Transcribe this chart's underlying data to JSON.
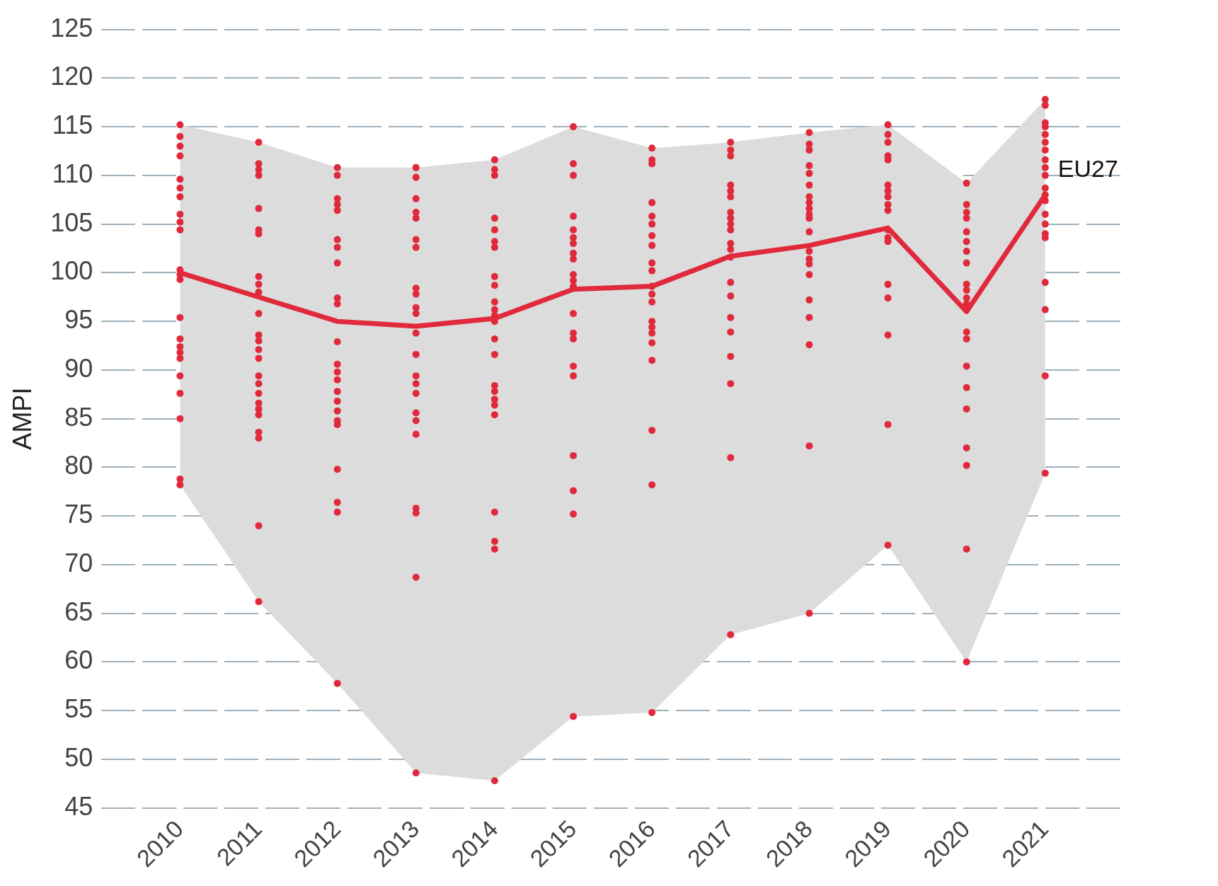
{
  "chart_data": {
    "type": "line",
    "ylabel": "AMPI",
    "x": [
      2010,
      2011,
      2012,
      2013,
      2014,
      2015,
      2016,
      2017,
      2018,
      2019,
      2020,
      2021
    ],
    "xlim": [
      2009,
      2022
    ],
    "xticks": [
      2010,
      2011,
      2012,
      2013,
      2014,
      2015,
      2016,
      2017,
      2018,
      2019,
      2020,
      2021
    ],
    "ylim": [
      45,
      125
    ],
    "yticks": [
      45,
      50,
      55,
      60,
      65,
      70,
      75,
      80,
      85,
      90,
      95,
      100,
      105,
      110,
      115,
      120,
      125
    ],
    "grid": "y",
    "legend": false,
    "series": [
      {
        "name": "EU27",
        "color": "#e02a3c",
        "marker": "none",
        "values": [
          100,
          97.5,
          95,
          94.5,
          95.3,
          98.3,
          98.6,
          101.7,
          102.8,
          104.6,
          96,
          108
        ],
        "lower": [
          78.2,
          66.2,
          57.8,
          48.6,
          47.8,
          54.4,
          54.8,
          62.8,
          65,
          72,
          60,
          79.4
        ],
        "upper": [
          115.2,
          113.4,
          110.8,
          110.8,
          111.6,
          115,
          112.8,
          113.4,
          114.4,
          115.2,
          109.2,
          117.8
        ]
      },
      {
        "type": "scatter",
        "color": "#e02a3c",
        "marker": "circle",
        "x": [
          2010,
          2010,
          2010,
          2010,
          2010,
          2010,
          2010,
          2010,
          2010,
          2010,
          2010,
          2010,
          2010,
          2010,
          2010,
          2010,
          2010,
          2010,
          2010,
          2010,
          2010,
          2010,
          2010,
          2011,
          2011,
          2011,
          2011,
          2011,
          2011,
          2011,
          2011,
          2011,
          2011,
          2011,
          2011,
          2011,
          2011,
          2011,
          2011,
          2011,
          2011,
          2011,
          2011,
          2011,
          2011,
          2011,
          2011,
          2011,
          2012,
          2012,
          2012,
          2012,
          2012,
          2012,
          2012,
          2012,
          2012,
          2012,
          2012,
          2012,
          2012,
          2012,
          2012,
          2012,
          2012,
          2012,
          2012,
          2012,
          2012,
          2012,
          2012,
          2013,
          2013,
          2013,
          2013,
          2013,
          2013,
          2013,
          2013,
          2013,
          2013,
          2013,
          2013,
          2013,
          2013,
          2013,
          2013,
          2013,
          2013,
          2013,
          2013,
          2013,
          2013,
          2013,
          2014,
          2014,
          2014,
          2014,
          2014,
          2014,
          2014,
          2014,
          2014,
          2014,
          2014,
          2014,
          2014,
          2014,
          2014,
          2014,
          2014,
          2014,
          2014,
          2014,
          2014,
          2014,
          2014,
          2014,
          2015,
          2015,
          2015,
          2015,
          2015,
          2015,
          2015,
          2015,
          2015,
          2015,
          2015,
          2015,
          2015,
          2015,
          2015,
          2015,
          2015,
          2015,
          2015,
          2015,
          2015,
          2016,
          2016,
          2016,
          2016,
          2016,
          2016,
          2016,
          2016,
          2016,
          2016,
          2016,
          2016,
          2016,
          2016,
          2016,
          2016,
          2016,
          2016,
          2016,
          2016,
          2016,
          2017,
          2017,
          2017,
          2017,
          2017,
          2017,
          2017,
          2017,
          2017,
          2017,
          2017,
          2017,
          2017,
          2017,
          2017,
          2017,
          2017,
          2017,
          2017,
          2017,
          2017,
          2018,
          2018,
          2018,
          2018,
          2018,
          2018,
          2018,
          2018,
          2018,
          2018,
          2018,
          2018,
          2018,
          2018,
          2018,
          2018,
          2018,
          2018,
          2018,
          2018,
          2018,
          2019,
          2019,
          2019,
          2019,
          2019,
          2019,
          2019,
          2019,
          2019,
          2019,
          2019,
          2019,
          2019,
          2019,
          2019,
          2019,
          2019,
          2019,
          2020,
          2020,
          2020,
          2020,
          2020,
          2020,
          2020,
          2020,
          2020,
          2020,
          2020,
          2020,
          2020,
          2020,
          2020,
          2020,
          2020,
          2020,
          2020,
          2020,
          2020,
          2020,
          2021,
          2021,
          2021,
          2021,
          2021,
          2021,
          2021,
          2021,
          2021,
          2021,
          2021,
          2021,
          2021,
          2021,
          2021,
          2021,
          2021,
          2021,
          2021,
          2021,
          2021
        ],
        "values": [
          115.2,
          114,
          113,
          112,
          109.6,
          108.7,
          107.8,
          106,
          105.2,
          104.4,
          100.3,
          99.8,
          99.3,
          95.4,
          93.2,
          92.4,
          91.8,
          91.2,
          89.4,
          87.6,
          85,
          78.8,
          78.2,
          113.4,
          111.2,
          110.6,
          110,
          106.6,
          104.4,
          104,
          99.6,
          98.8,
          98,
          95.8,
          93.6,
          93,
          92.1,
          91.2,
          89.4,
          88.6,
          87.6,
          86.6,
          86,
          85.4,
          83.6,
          83,
          74,
          66.2,
          110.8,
          110,
          107.6,
          107,
          106.4,
          103.4,
          102.6,
          101,
          97.4,
          96.8,
          92.9,
          90.6,
          89.8,
          89,
          87.8,
          86.8,
          85.8,
          84.8,
          84.4,
          79.8,
          76.4,
          75.4,
          57.8,
          110.8,
          109.8,
          107.6,
          106.2,
          105.6,
          103.4,
          102.6,
          98.4,
          97.8,
          96.4,
          95.8,
          93.8,
          91.6,
          89.4,
          88.6,
          87.6,
          85.6,
          84.8,
          83.4,
          75.8,
          75.3,
          68.7,
          48.6,
          111.6,
          110.6,
          110,
          105.6,
          104.4,
          103.2,
          102.6,
          99.6,
          98.7,
          97,
          96.2,
          95.6,
          95,
          93.2,
          91.6,
          88.4,
          87.8,
          87,
          86.4,
          85.4,
          75.4,
          72.4,
          71.6,
          47.8,
          115,
          111.2,
          110,
          105.8,
          104.4,
          103.6,
          103,
          102,
          101.4,
          99.8,
          99.2,
          98.6,
          95.8,
          93.8,
          93.2,
          90.4,
          89.4,
          81.2,
          77.6,
          75.2,
          54.4,
          112.8,
          111.6,
          111.2,
          107.2,
          105.8,
          105,
          103.8,
          102.8,
          101,
          100.2,
          98.6,
          97.8,
          97,
          95,
          94.4,
          93.8,
          92.8,
          91,
          83.8,
          78.2,
          54.8,
          113.4,
          112.6,
          112,
          109,
          108.4,
          107.8,
          106.2,
          105.6,
          105,
          104.4,
          103,
          102.4,
          101.6,
          99,
          97.6,
          95.4,
          93.9,
          91.4,
          88.6,
          81,
          62.8,
          114.4,
          113.2,
          112.6,
          111,
          110.2,
          109,
          107.8,
          107.2,
          106.6,
          106,
          105.6,
          104.2,
          102.2,
          101.4,
          100.9,
          99.8,
          97.2,
          95.4,
          92.6,
          82.2,
          65,
          115.2,
          114.2,
          113.4,
          112,
          111.6,
          109,
          108.4,
          107.8,
          107,
          106.4,
          104.4,
          103.6,
          103.2,
          98.8,
          97.4,
          93.6,
          84.4,
          72,
          109.2,
          107,
          106.2,
          105.6,
          104.2,
          103.2,
          102.2,
          101,
          98.8,
          98.2,
          97.4,
          96.8,
          96.2,
          93.9,
          93.2,
          90.4,
          88.2,
          86,
          82,
          80.2,
          71.6,
          60,
          117.8,
          117.2,
          115.4,
          115,
          114.2,
          113.4,
          112.6,
          111.6,
          110.8,
          110,
          108.7,
          108,
          107.4,
          106,
          105,
          104,
          103.6,
          99,
          96.2,
          89.4,
          79.4
        ]
      }
    ]
  }
}
